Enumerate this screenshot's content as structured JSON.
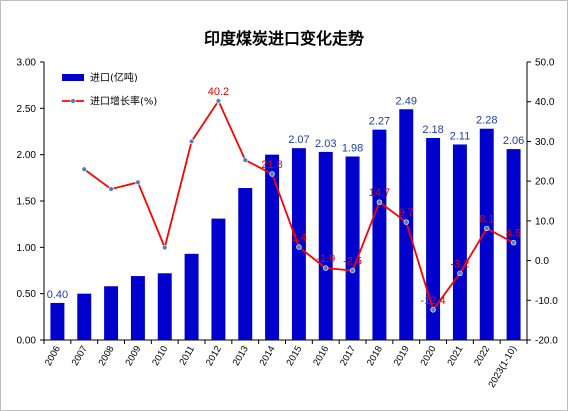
{
  "chart_data": {
    "type": "bar",
    "title": "印度煤炭进口变化走势",
    "categories": [
      "2006",
      "2007",
      "2008",
      "2009",
      "2010",
      "2011",
      "2012",
      "2013",
      "2014",
      "2015",
      "2016",
      "2017",
      "2018",
      "2019",
      "2020",
      "2021",
      "2022",
      "2023(1-10)"
    ],
    "series": [
      {
        "name": "进口(亿吨)",
        "type": "bar",
        "axis": "left",
        "color": "#0000cc",
        "values": [
          0.4,
          0.5,
          0.58,
          0.69,
          0.72,
          0.93,
          1.31,
          1.64,
          2.0,
          2.07,
          2.03,
          1.98,
          2.27,
          2.49,
          2.18,
          2.11,
          2.28,
          2.06
        ],
        "data_labels": [
          "0.40",
          "",
          "",
          "",
          "",
          "",
          "",
          "",
          "",
          "2.07",
          "2.03",
          "1.98",
          "2.27",
          "2.49",
          "2.18",
          "2.11",
          "2.28",
          "2.06"
        ]
      },
      {
        "name": "进口增长率(%)",
        "type": "line",
        "axis": "right",
        "color": "#ff0000",
        "values": [
          null,
          23.0,
          18.0,
          19.7,
          3.3,
          30.0,
          40.2,
          25.3,
          21.8,
          3.4,
          -1.9,
          -2.5,
          14.7,
          9.7,
          -12.4,
          -3.2,
          8.1,
          4.5
        ],
        "data_labels": [
          "",
          "",
          "",
          "",
          "",
          "",
          "40.2",
          "",
          "21.8",
          "3.4",
          "-1.9",
          "-2.5",
          "14.7",
          "9.7",
          "-12.4",
          "-3.2",
          "8.1",
          "4.5"
        ]
      }
    ],
    "y_left": {
      "ylim": [
        0,
        3
      ],
      "ticks": [
        "0.00",
        "0.50",
        "1.00",
        "1.50",
        "2.00",
        "2.50",
        "3.00"
      ]
    },
    "y_right": {
      "ylim": [
        -20,
        50
      ],
      "ticks": [
        "-20.0",
        "-10.0",
        "0.0",
        "10.0",
        "20.0",
        "30.0",
        "40.0",
        "50.0"
      ]
    },
    "grid": false,
    "legend_placement": "top-left"
  }
}
